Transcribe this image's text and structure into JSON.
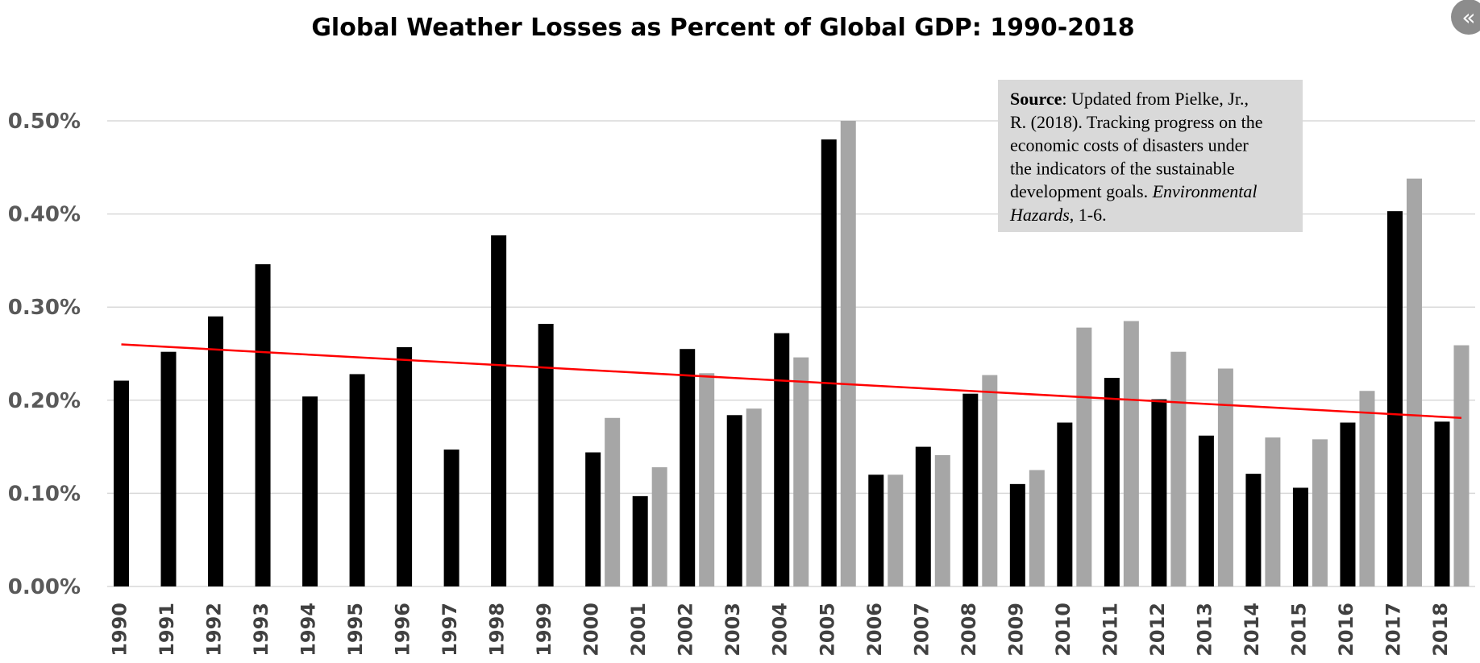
{
  "chart_data": {
    "type": "bar",
    "title": "Global Weather Losses as Percent of Global GDP: 1990-2018",
    "categories": [
      "1990",
      "1991",
      "1992",
      "1993",
      "1994",
      "1995",
      "1996",
      "1997",
      "1998",
      "1999",
      "2000",
      "2001",
      "2002",
      "2003",
      "2004",
      "2005",
      "2006",
      "2007",
      "2008",
      "2009",
      "2010",
      "2011",
      "2012",
      "2013",
      "2014",
      "2015",
      "2016",
      "2017",
      "2018"
    ],
    "series": [
      {
        "color": "#000000",
        "values": [
          0.221,
          0.252,
          0.29,
          0.346,
          0.204,
          0.228,
          0.257,
          0.147,
          0.377,
          0.282,
          0.144,
          0.097,
          0.255,
          0.184,
          0.272,
          0.48,
          0.12,
          0.15,
          0.207,
          0.11,
          0.176,
          0.224,
          0.201,
          0.162,
          0.121,
          0.106,
          0.176,
          0.403,
          0.177
        ]
      },
      {
        "color": "#a6a6a6",
        "values": [
          null,
          null,
          null,
          null,
          null,
          null,
          null,
          null,
          null,
          null,
          0.181,
          0.128,
          0.229,
          0.191,
          0.246,
          0.5,
          0.12,
          0.141,
          0.227,
          0.125,
          0.278,
          0.285,
          0.252,
          0.234,
          0.16,
          0.158,
          0.21,
          0.438,
          0.259
        ]
      }
    ],
    "trendline": {
      "color": "#ff0000",
      "start": 0.26,
      "end": 0.181
    },
    "ylim": [
      0,
      0.5
    ],
    "yticks": [
      0,
      0.1,
      0.2,
      0.3,
      0.4,
      0.5
    ],
    "ytick_labels": [
      "0.00%",
      "0.10%",
      "0.20%",
      "0.30%",
      "0.40%",
      "0.50%"
    ],
    "grid": true,
    "xlabel": "",
    "ylabel": ""
  },
  "source_note": {
    "lines": [
      [
        {
          "text": "Source",
          "bold": true
        },
        {
          "text": ": Updated from Pielke, Jr.,"
        }
      ],
      [
        {
          "text": "R. (2018). Tracking progress on the"
        }
      ],
      [
        {
          "text": "economic costs of disasters under"
        }
      ],
      [
        {
          "text": "the indicators of the sustainable"
        }
      ],
      [
        {
          "text": "development goals. "
        },
        {
          "text": "Environmental",
          "italic": true
        }
      ],
      [
        {
          "text": "Hazards",
          "italic": true
        },
        {
          "text": ", 1-6."
        }
      ]
    ]
  },
  "collapse_button": {
    "glyph": "«",
    "icon": "double-chevron-left-icon"
  },
  "colors": {
    "background": "#ffffff",
    "grid": "#d9d9d9",
    "source_box": "#d9d9d9"
  }
}
